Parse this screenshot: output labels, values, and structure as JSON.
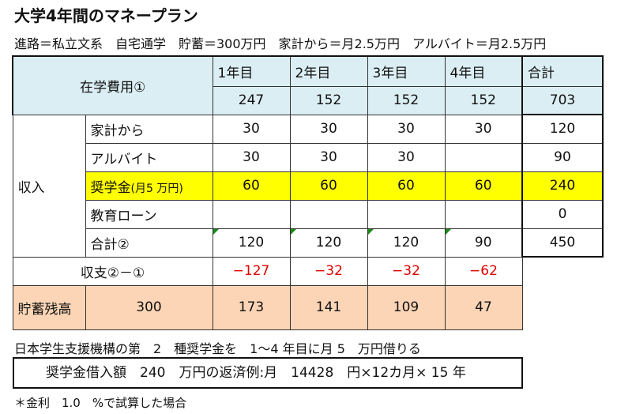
{
  "title": "大学4年間のマネープラン",
  "subtitle": "進路＝私立文系　自宅通学　貯蓄＝300万円　家計から＝月2.5万円　アルバイト＝月2.5万円",
  "table": {
    "header_label": "在学費用①",
    "years": [
      "1年目",
      "2年目",
      "3年目",
      "4年目"
    ],
    "total_label": "合計",
    "tuition": [
      "247",
      "152",
      "152",
      "152"
    ],
    "tuition_total": "703",
    "income_label": "収入",
    "income_rows": [
      {
        "label": "家計から",
        "values": [
          "30",
          "30",
          "30",
          "30"
        ],
        "total": "120"
      },
      {
        "label": "アルバイト",
        "values": [
          "30",
          "30",
          "30",
          ""
        ],
        "total": "90"
      },
      {
        "label": "奨学金",
        "label_suffix": "(月5 万円)",
        "values": [
          "60",
          "60",
          "60",
          "60"
        ],
        "total": "240"
      },
      {
        "label": "教育ローン",
        "values": [
          "",
          "",
          "",
          ""
        ],
        "total": "0"
      },
      {
        "label": "合計②",
        "values": [
          "120",
          "120",
          "120",
          "90"
        ],
        "total": "450"
      }
    ],
    "balance_label": "収支②－①",
    "balance": [
      "−127",
      "−32",
      "−32",
      "−62"
    ],
    "savings_label": "貯蓄残高",
    "savings_start": "300",
    "savings": [
      "173",
      "141",
      "109",
      "47"
    ]
  },
  "note1": "日本学生支援機構の第　2　種奨学金を　1～4 年目に月 5　万円借りる",
  "boxed_text": "奨学金借入額　240　万円の返済例:月　14428　円×12カ月× 15 年",
  "note2": "＊金利　1.0　%で試算した場合",
  "colors": {
    "header_bg": "#dbeef3",
    "highlight_bg": "#ffff00",
    "savings_bg": "#fbd5b5",
    "negative_text": "#e00000"
  }
}
